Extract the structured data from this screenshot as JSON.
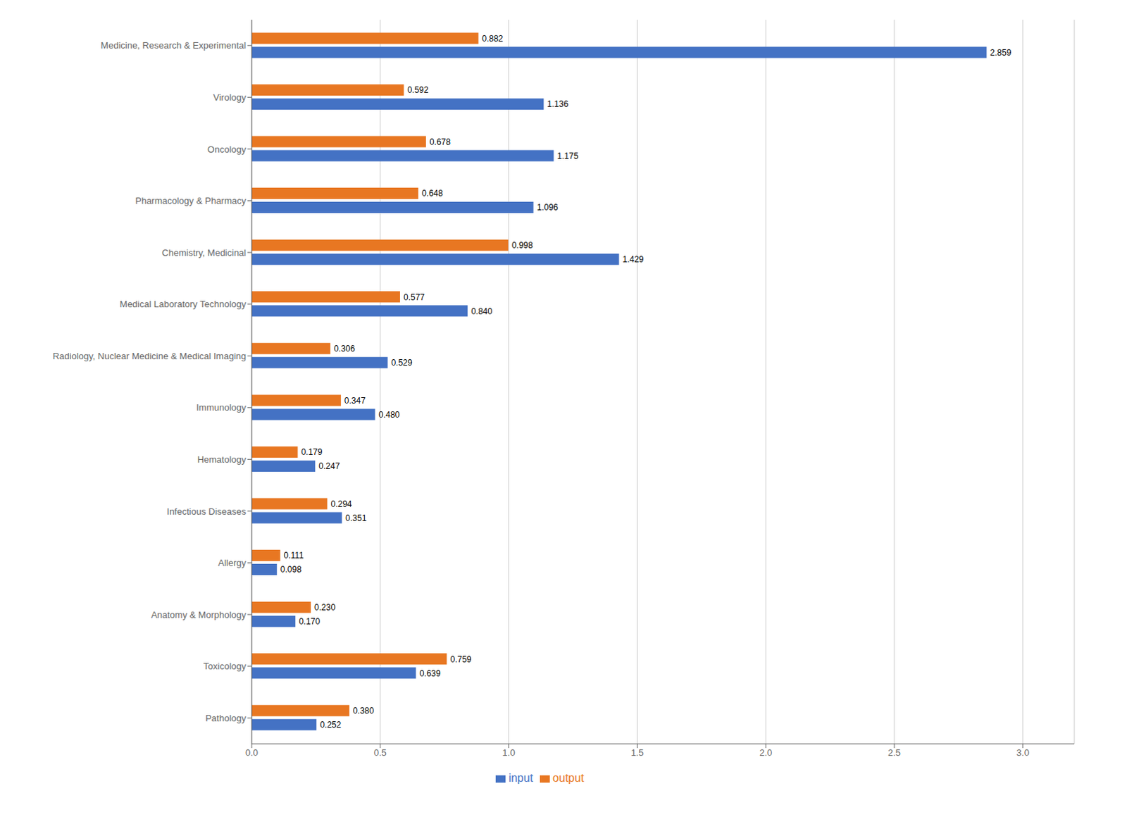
{
  "chart_data": {
    "type": "bar",
    "orientation": "horizontal",
    "categories": [
      "Medicine, Research & Experimental",
      "Virology",
      "Oncology",
      "Pharmacology & Pharmacy",
      "Chemistry, Medicinal",
      "Medical Laboratory Technology",
      "Radiology, Nuclear Medicine & Medical Imaging",
      "Immunology",
      "Hematology",
      "Infectious Diseases",
      "Allergy",
      "Anatomy & Morphology",
      "Toxicology",
      "Pathology"
    ],
    "series": [
      {
        "name": "output",
        "color": "#E87722",
        "values": [
          0.882,
          0.592,
          0.678,
          0.648,
          0.998,
          0.577,
          0.306,
          0.347,
          0.179,
          0.294,
          0.111,
          0.23,
          0.759,
          0.38
        ],
        "value_labels": [
          "0.882",
          "0.592",
          "0.678",
          "0.648",
          "0.998",
          "0.577",
          "0.306",
          "0.347",
          "0.179",
          "0.294",
          "0.111",
          "0.230",
          "0.759",
          "0.380"
        ]
      },
      {
        "name": "input",
        "color": "#4472C4",
        "values": [
          2.859,
          1.136,
          1.175,
          1.096,
          1.429,
          0.84,
          0.529,
          0.48,
          0.247,
          0.351,
          0.098,
          0.17,
          0.639,
          0.252
        ],
        "value_labels": [
          "2.859",
          "1.136",
          "1.175",
          "1.096",
          "1.429",
          "0.840",
          "0.529",
          "0.480",
          "0.247",
          "0.351",
          "0.098",
          "0.170",
          "0.639",
          "0.252"
        ]
      }
    ],
    "xlim": [
      0,
      3.2
    ],
    "xticks": [
      {
        "value": 0,
        "label": "0.0"
      },
      {
        "value": 0.5,
        "label": "0.5"
      },
      {
        "value": 1,
        "label": "1.0"
      },
      {
        "value": 1.5,
        "label": "1.5"
      },
      {
        "value": 2,
        "label": "2.0"
      },
      {
        "value": 2.5,
        "label": "2.5"
      },
      {
        "value": 3,
        "label": "3.0"
      }
    ],
    "grid": true,
    "legend": "bottom",
    "data_labels": true
  }
}
